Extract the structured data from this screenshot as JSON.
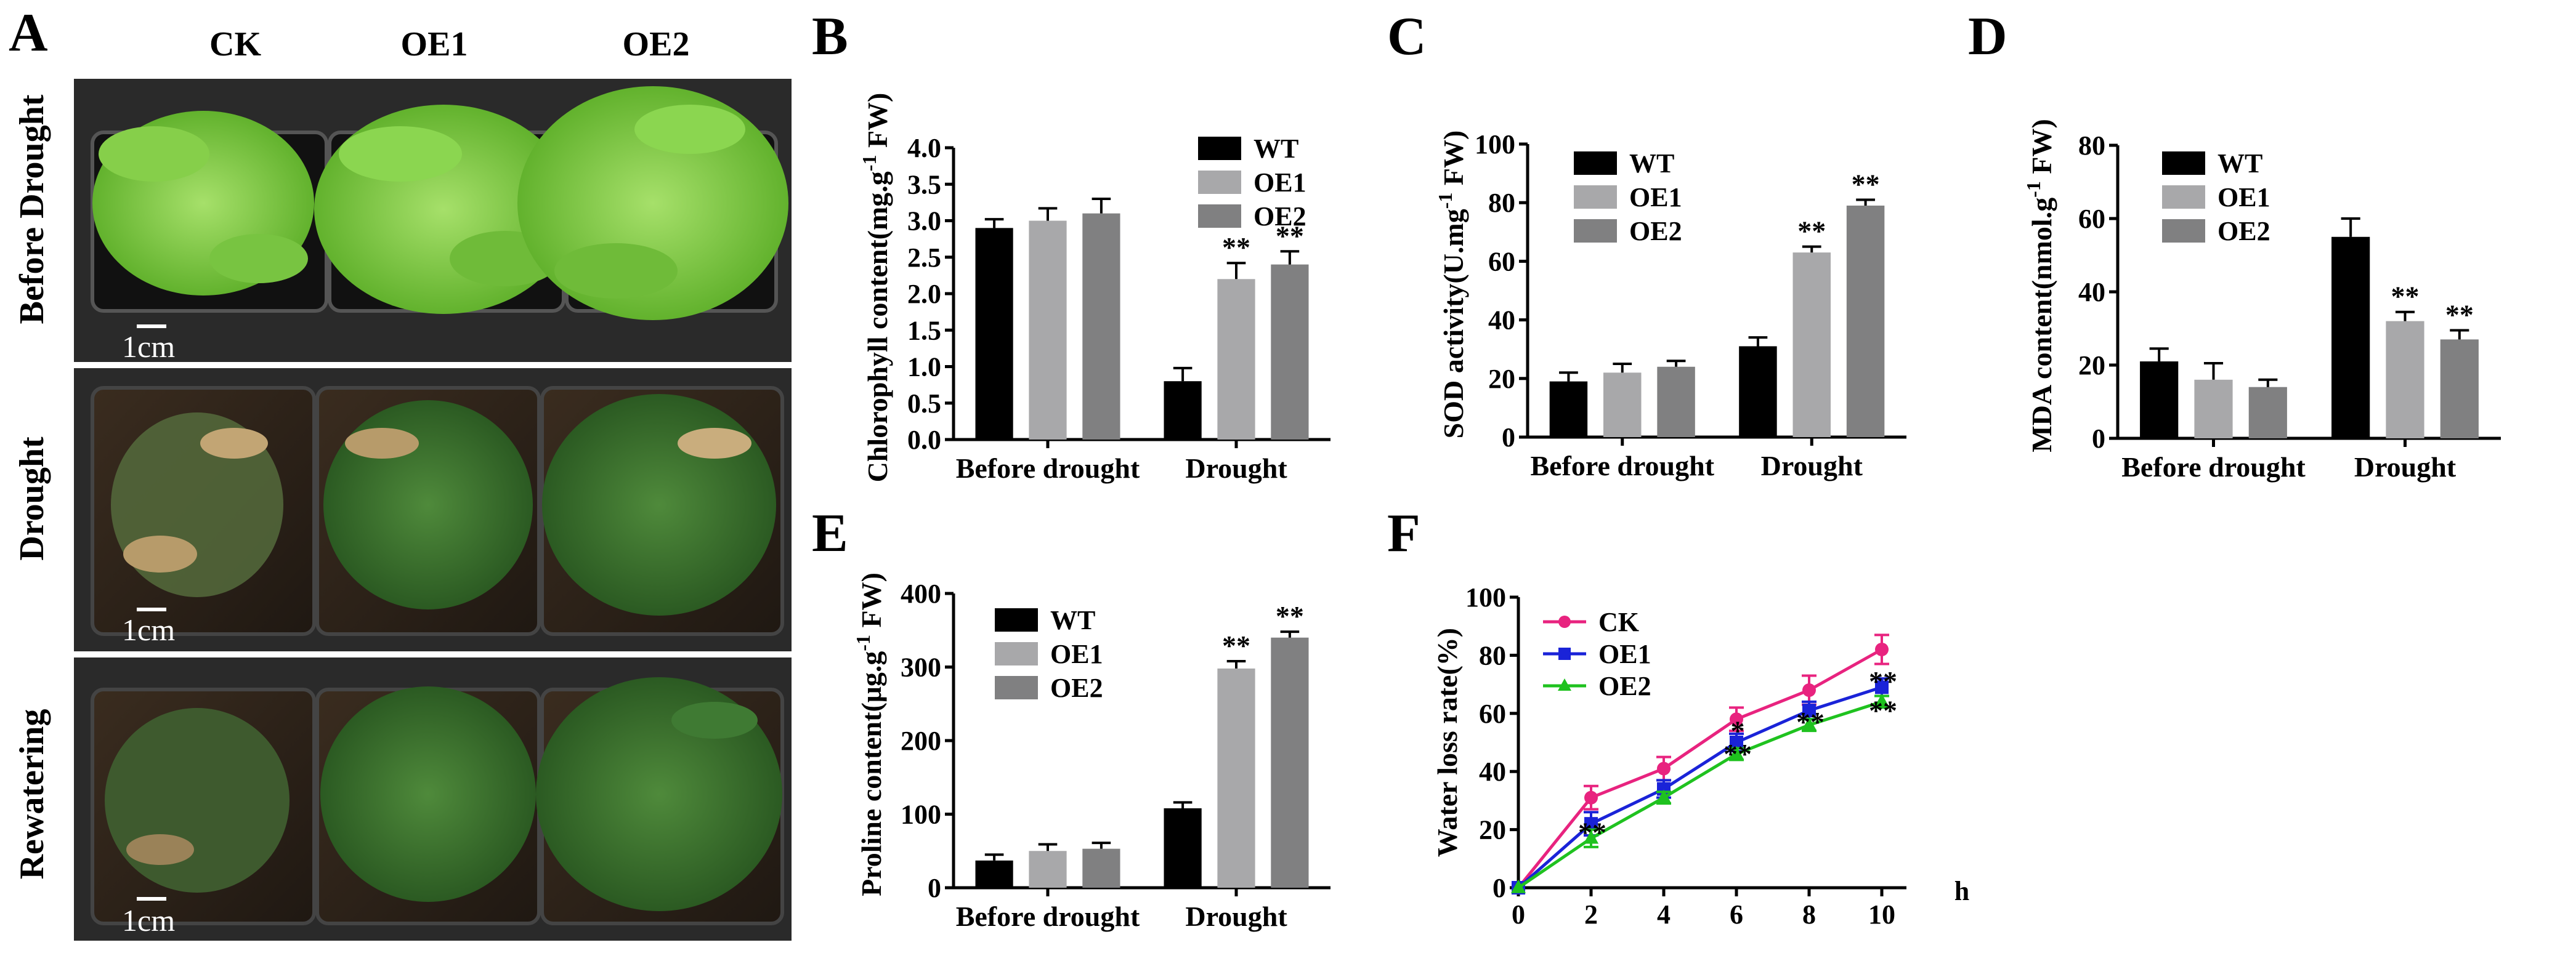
{
  "figure": {
    "panel_letters": [
      "A",
      "B",
      "C",
      "D",
      "E",
      "F"
    ]
  },
  "photo_panel": {
    "columns": [
      "CK",
      "OE1",
      "OE2"
    ],
    "rows": [
      "Before Drought",
      "Drought",
      "Rewatering"
    ],
    "scale_bar": "1cm"
  },
  "chart_data": [
    {
      "id": "B",
      "type": "bar",
      "ylabel": "Chlorophyll content(mg.g",
      "ylabel_sup": "-1",
      "ylabel_end": " FW)",
      "categories": [
        "Before drought",
        "Drought"
      ],
      "ylim": [
        0,
        4.0
      ],
      "yticks": [
        "0.0",
        "0.5",
        "1.0",
        "1.5",
        "2.0",
        "2.5",
        "3.0",
        "3.5",
        "4.0"
      ],
      "series": [
        {
          "name": "WT",
          "color": "#000000",
          "values": [
            2.9,
            0.8
          ],
          "errors": [
            0.12,
            0.18
          ]
        },
        {
          "name": "OE1",
          "color": "#a8a8aa",
          "values": [
            3.0,
            2.2
          ],
          "errors": [
            0.17,
            0.22
          ]
        },
        {
          "name": "OE2",
          "color": "#808081",
          "values": [
            3.1,
            2.4
          ],
          "errors": [
            0.2,
            0.18
          ]
        }
      ],
      "significance": [
        [
          "",
          ""
        ],
        [
          "",
          "**"
        ],
        [
          "",
          "**"
        ]
      ],
      "legend": "top-right"
    },
    {
      "id": "C",
      "type": "bar",
      "ylabel": "SOD activity(U.mg",
      "ylabel_sup": "-1",
      "ylabel_end": " FW)",
      "categories": [
        "Before drought",
        "Drought"
      ],
      "ylim": [
        0,
        100
      ],
      "yticks": [
        "0",
        "20",
        "40",
        "60",
        "80",
        "100"
      ],
      "series": [
        {
          "name": "WT",
          "color": "#000000",
          "values": [
            19,
            31
          ],
          "errors": [
            3,
            3
          ]
        },
        {
          "name": "OE1",
          "color": "#a8a8aa",
          "values": [
            22,
            63
          ],
          "errors": [
            3,
            2
          ]
        },
        {
          "name": "OE2",
          "color": "#808081",
          "values": [
            24,
            79
          ],
          "errors": [
            2,
            2
          ]
        }
      ],
      "significance": [
        [
          "",
          ""
        ],
        [
          "",
          "**"
        ],
        [
          "",
          "**"
        ]
      ],
      "legend": "top-left"
    },
    {
      "id": "D",
      "type": "bar",
      "ylabel": "MDA content(nmol.g",
      "ylabel_sup": "-1",
      "ylabel_end": " FW)",
      "categories": [
        "Before drought",
        "Drought"
      ],
      "ylim": [
        0,
        80
      ],
      "yticks": [
        "0",
        "20",
        "40",
        "60",
        "80"
      ],
      "series": [
        {
          "name": "WT",
          "color": "#000000",
          "values": [
            21,
            55
          ],
          "errors": [
            3.5,
            5
          ]
        },
        {
          "name": "OE1",
          "color": "#a8a8aa",
          "values": [
            16,
            32
          ],
          "errors": [
            4.5,
            2.5
          ]
        },
        {
          "name": "OE2",
          "color": "#808081",
          "values": [
            14,
            27
          ],
          "errors": [
            2,
            2.5
          ]
        }
      ],
      "significance": [
        [
          "",
          ""
        ],
        [
          "",
          "**"
        ],
        [
          "",
          "**"
        ]
      ],
      "legend": "top-left"
    },
    {
      "id": "E",
      "type": "bar",
      "ylabel": "Proline content(μg.g",
      "ylabel_sup": "-1",
      "ylabel_end": " FW)",
      "categories": [
        "Before drought",
        "Drought"
      ],
      "ylim": [
        0,
        400
      ],
      "yticks": [
        "0",
        "100",
        "200",
        "300",
        "400"
      ],
      "series": [
        {
          "name": "WT",
          "color": "#000000",
          "values": [
            37,
            108
          ],
          "errors": [
            8,
            8
          ]
        },
        {
          "name": "OE1",
          "color": "#a8a8aa",
          "values": [
            50,
            298
          ],
          "errors": [
            9,
            10
          ]
        },
        {
          "name": "OE2",
          "color": "#808081",
          "values": [
            53,
            340
          ],
          "errors": [
            8,
            8
          ]
        }
      ],
      "significance": [
        [
          "",
          ""
        ],
        [
          "",
          "**"
        ],
        [
          "",
          "**"
        ]
      ],
      "legend": "top-left"
    },
    {
      "id": "F",
      "type": "line",
      "ylabel": "Water loss rate(%)",
      "xlabel": "h",
      "x": [
        0,
        2,
        4,
        6,
        8,
        10
      ],
      "xticks": [
        "0",
        "2",
        "4",
        "6",
        "8",
        "10"
      ],
      "ylim": [
        0,
        100
      ],
      "yticks": [
        "0",
        "20",
        "40",
        "60",
        "80",
        "100"
      ],
      "series": [
        {
          "name": "CK",
          "color": "#e8237f",
          "marker": "circle",
          "values": [
            0,
            31,
            41,
            58,
            68,
            82
          ],
          "errors": [
            0,
            4,
            4,
            4,
            5,
            5
          ]
        },
        {
          "name": "OE1",
          "color": "#1a23d8",
          "marker": "square",
          "values": [
            0,
            22,
            34,
            50,
            61,
            69
          ],
          "errors": [
            0,
            4,
            3,
            3,
            3,
            3
          ]
        },
        {
          "name": "OE2",
          "color": "#1fc21f",
          "marker": "triangle",
          "values": [
            0,
            17,
            31,
            46,
            56,
            64
          ],
          "errors": [
            0,
            3,
            2,
            2,
            2,
            2
          ]
        }
      ],
      "annotations": [
        {
          "x": 2,
          "y": 20,
          "text": "**"
        },
        {
          "x": 6,
          "y": 55,
          "text": "*"
        },
        {
          "x": 6,
          "y": 47,
          "text": "**"
        },
        {
          "x": 8,
          "y": 58,
          "text": "**"
        },
        {
          "x": 10,
          "y": 72,
          "text": "**"
        },
        {
          "x": 10,
          "y": 62,
          "text": "**"
        }
      ],
      "legend": "top-left"
    }
  ]
}
